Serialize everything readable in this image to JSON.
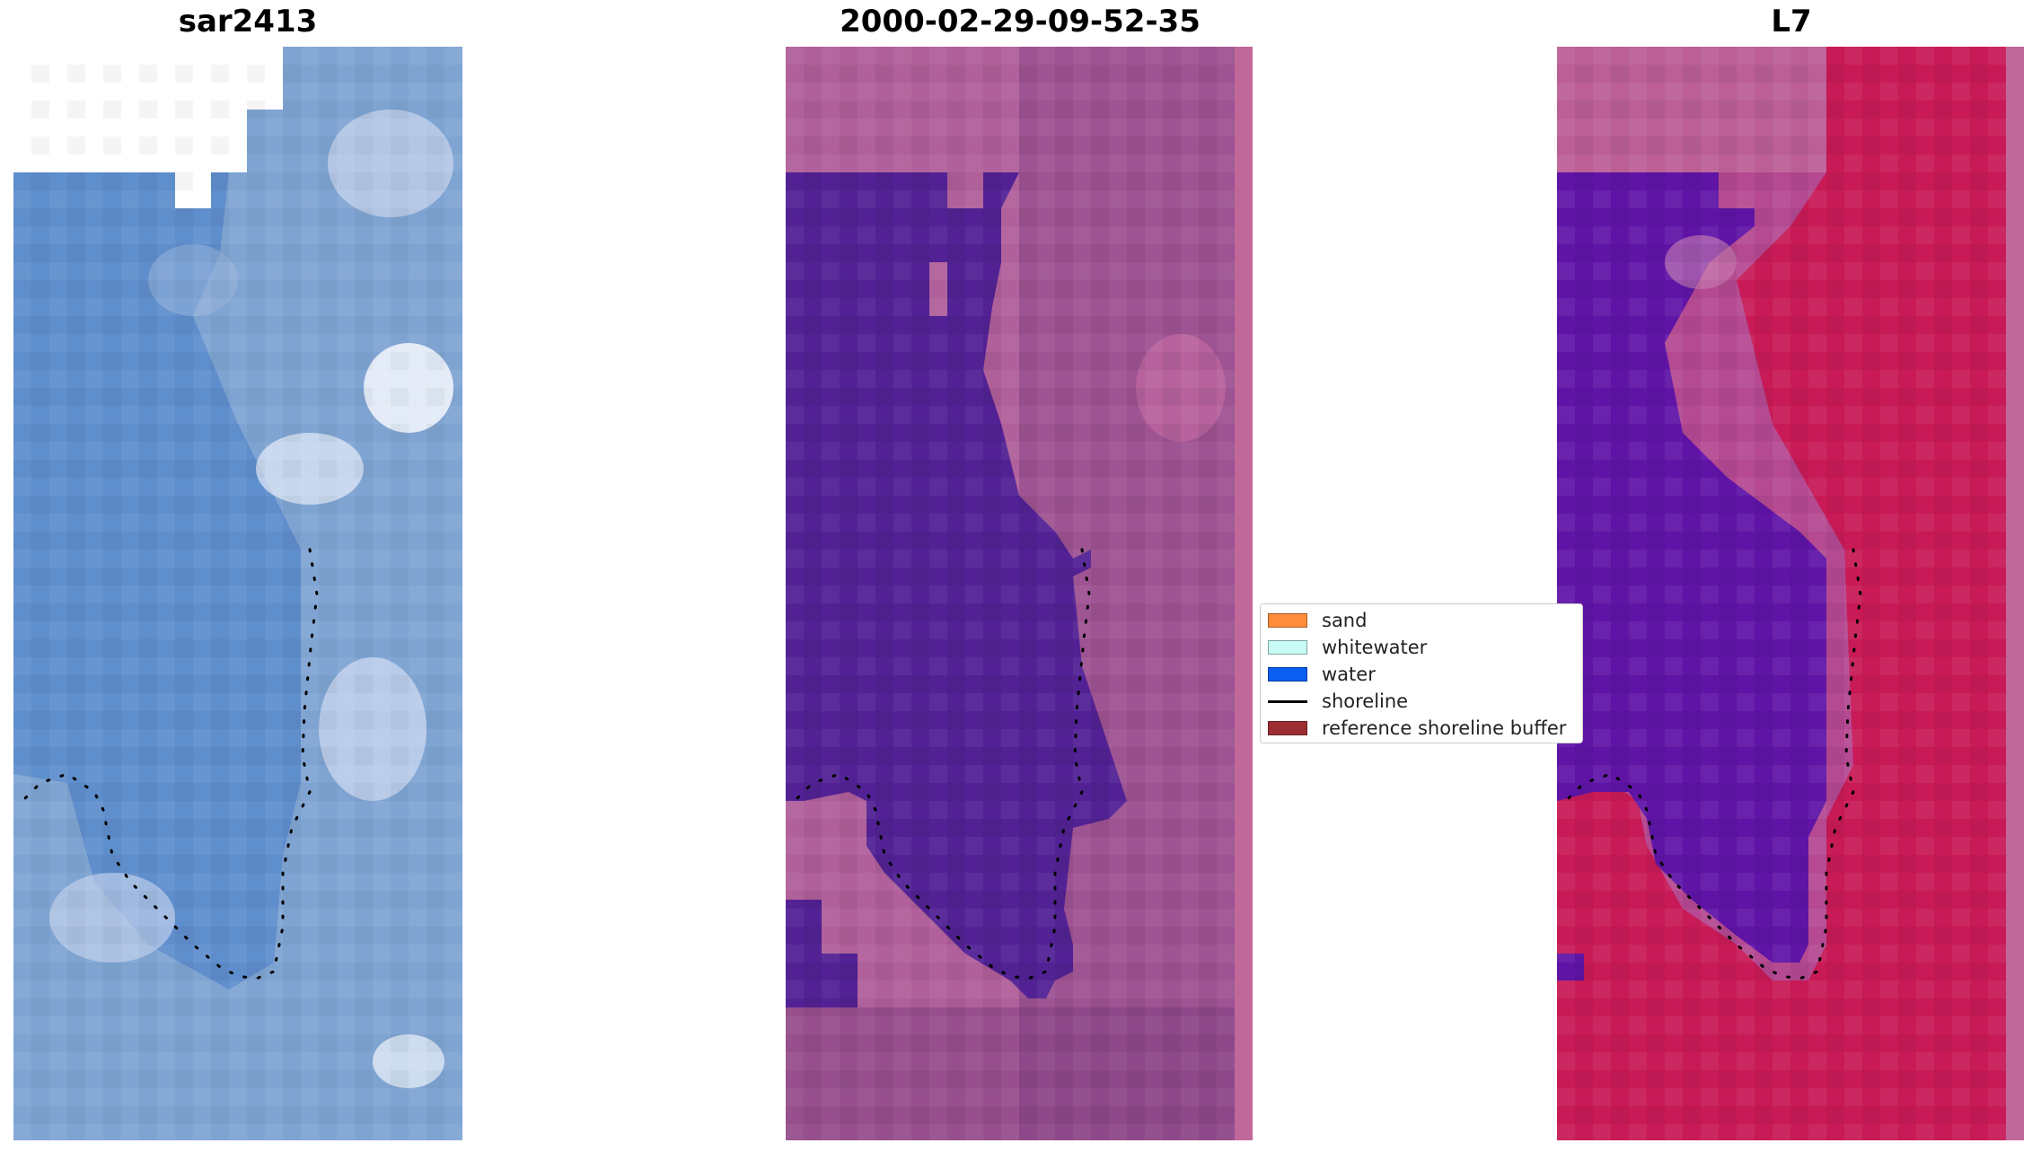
{
  "panels": [
    {
      "title": "sar2413",
      "base": "#7fa4d2"
    },
    {
      "title": "2000-02-29-09-52-35",
      "base": "#b0609a",
      "water": "#522295"
    },
    {
      "title": "L7",
      "base": "#c81a56",
      "water": "#5f14a6"
    }
  ],
  "legend": {
    "items": [
      {
        "label": "sand",
        "color": "#ff8c3a",
        "kind": "patch"
      },
      {
        "label": "whitewater",
        "color": "#c9fcf6",
        "kind": "patch"
      },
      {
        "label": "water",
        "color": "#0a5ef0",
        "kind": "patch"
      },
      {
        "label": "shoreline",
        "color": "#000000",
        "kind": "line"
      },
      {
        "label": "reference shoreline buffer",
        "color": "#9b2d33",
        "kind": "patch"
      }
    ]
  }
}
